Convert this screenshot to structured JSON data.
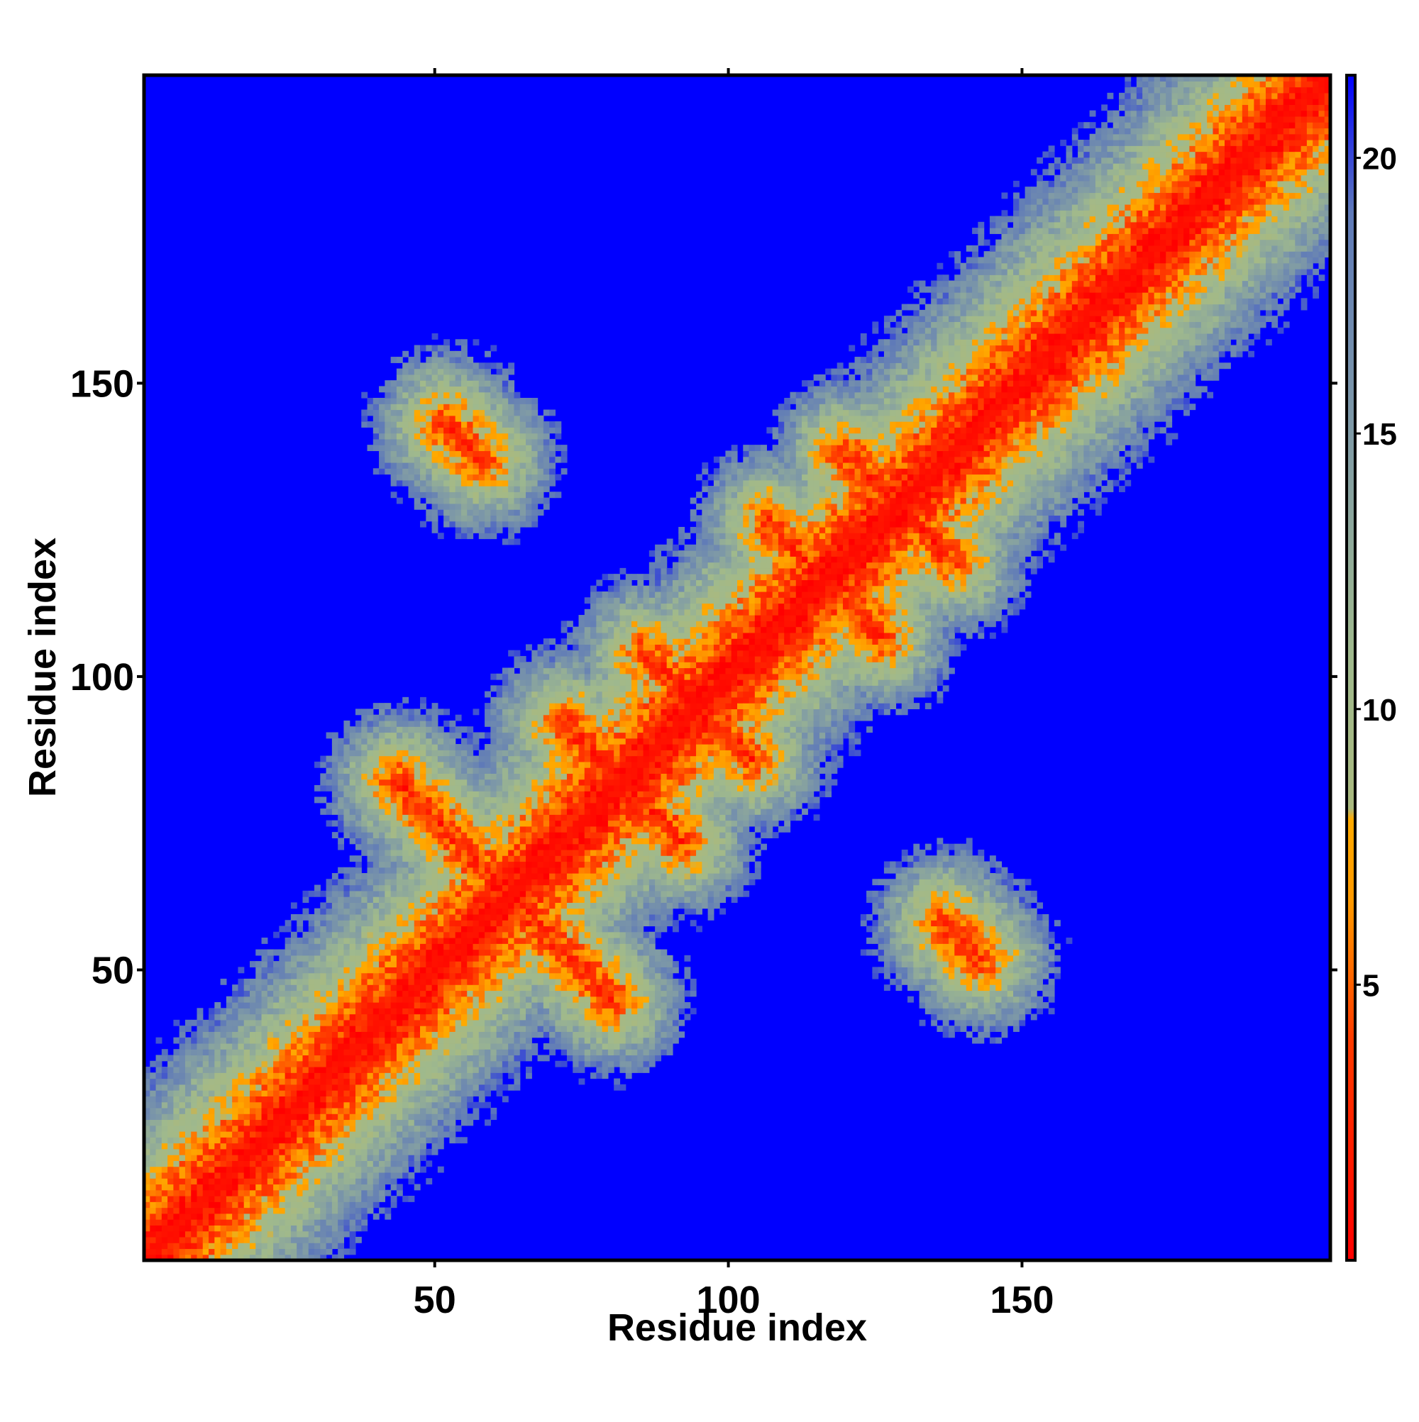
{
  "chart_data": {
    "type": "heatmap",
    "title": "",
    "xlabel": "Residue index",
    "ylabel": "Residue index",
    "xlim": [
      1,
      202
    ],
    "ylim": [
      1,
      202
    ],
    "x_ticks": [
      50,
      100,
      150
    ],
    "y_ticks": [
      50,
      100,
      150
    ],
    "x_tick_labels": [
      "50",
      "100",
      "150"
    ],
    "y_tick_labels": [
      "50",
      "100",
      "150"
    ],
    "colorbar": {
      "range": [
        0,
        21.5
      ],
      "ticks": [
        5,
        10,
        15,
        20
      ],
      "tick_labels": [
        "5",
        "10",
        "15",
        "20"
      ],
      "stops": [
        {
          "value": 0,
          "color": "#ff0000"
        },
        {
          "value": 4,
          "color": "#ff3b00"
        },
        {
          "value": 6.5,
          "color": "#ff9900"
        },
        {
          "value": 8,
          "color": "#ffaa00"
        },
        {
          "value": 8.2,
          "color": "#a9b97f"
        },
        {
          "value": 11,
          "color": "#9fb98d"
        },
        {
          "value": 15,
          "color": "#7f9aa6"
        },
        {
          "value": 19,
          "color": "#5f7ab8"
        },
        {
          "value": 21.5,
          "color": "#0000ff"
        }
      ]
    },
    "background_color": "#0000ff",
    "contact_features": [
      {
        "kind": "diagonal",
        "from": 1,
        "to": 202
      },
      {
        "kind": "antiparallel",
        "center": [
          63,
          63
        ],
        "arms": [
          [
            44,
            82
          ],
          [
            80,
            45
          ]
        ]
      },
      {
        "kind": "antiparallel",
        "center": [
          82,
          82
        ],
        "arms": [
          [
            72,
            92
          ],
          [
            92,
            72
          ]
        ]
      },
      {
        "kind": "antiparallel",
        "center": [
          94,
          94
        ],
        "arms": [
          [
            86,
            104
          ],
          [
            104,
            86
          ]
        ]
      },
      {
        "kind": "antiparallel",
        "center": [
          116,
          116
        ],
        "arms": [
          [
            107,
            126
          ],
          [
            126,
            107
          ]
        ]
      },
      {
        "kind": "antiparallel",
        "center": [
          128,
          128
        ],
        "arms": [
          [
            120,
            138
          ],
          [
            138,
            120
          ]
        ]
      },
      {
        "kind": "antiparallel",
        "center": [
          55,
          140
        ],
        "arms": [
          [
            52,
            143
          ],
          [
            58,
            137
          ]
        ]
      },
      {
        "kind": "antiparallel",
        "center": [
          140,
          55
        ],
        "arms": [
          [
            137,
            58
          ],
          [
            143,
            52
          ]
        ]
      }
    ]
  }
}
